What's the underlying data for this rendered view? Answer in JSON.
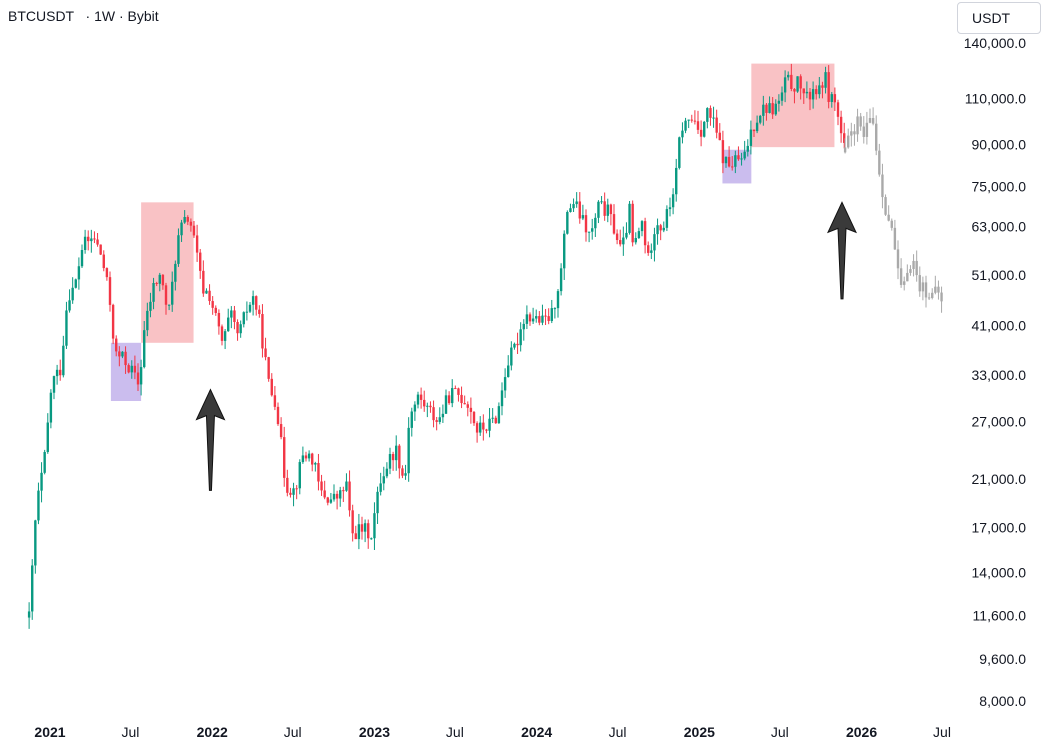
{
  "header": {
    "symbol": "BTCUSDT",
    "interval": "1W",
    "exchange": "Bybit",
    "separator": "·"
  },
  "currency_button": "USDT",
  "chart_data": {
    "type": "candlestick",
    "title": "BTCUSDT · 1W · Bybit",
    "scale": "log",
    "grid": false,
    "colors": {
      "up": "#089981",
      "down": "#f23645",
      "projection": "#a9a9a9",
      "sell_zone": "#f7a8ad",
      "buy_zone": "#b9a7e8",
      "arrow": "#3a3a3a"
    },
    "y_ticks": [
      {
        "value": 140000,
        "label": "140,000.0"
      },
      {
        "value": 110000,
        "label": "110,000.0"
      },
      {
        "value": 90000,
        "label": "90,000.0"
      },
      {
        "value": 75000,
        "label": "75,000.0"
      },
      {
        "value": 63000,
        "label": "63,000.0"
      },
      {
        "value": 51000,
        "label": "51,000.0"
      },
      {
        "value": 41000,
        "label": "41,000.0"
      },
      {
        "value": 33000,
        "label": "33,000.0"
      },
      {
        "value": 27000,
        "label": "27,000.0"
      },
      {
        "value": 21000,
        "label": "21,000.0"
      },
      {
        "value": 17000,
        "label": "17,000.0"
      },
      {
        "value": 14000,
        "label": "14,000.0"
      },
      {
        "value": 11600,
        "label": "11,600.0"
      },
      {
        "value": 9600,
        "label": "9,600.0"
      },
      {
        "value": 8000,
        "label": "8,000.0"
      }
    ],
    "x_ticks": [
      {
        "date": "2021-01-01",
        "label": "2021",
        "bold": true
      },
      {
        "date": "2021-07-01",
        "label": "Jul",
        "bold": false
      },
      {
        "date": "2022-01-01",
        "label": "2022",
        "bold": true
      },
      {
        "date": "2022-07-01",
        "label": "Jul",
        "bold": false
      },
      {
        "date": "2023-01-01",
        "label": "2023",
        "bold": true
      },
      {
        "date": "2023-07-01",
        "label": "Jul",
        "bold": false
      },
      {
        "date": "2024-01-01",
        "label": "2024",
        "bold": true
      },
      {
        "date": "2024-07-01",
        "label": "Jul",
        "bold": false
      },
      {
        "date": "2025-01-01",
        "label": "2025",
        "bold": true
      },
      {
        "date": "2025-07-01",
        "label": "Jul",
        "bold": false
      },
      {
        "date": "2026-01-01",
        "label": "2026",
        "bold": true
      },
      {
        "date": "2026-07-01",
        "label": "Jul",
        "bold": false
      }
    ],
    "series": [
      {
        "name": "BTCUSDT",
        "kind": "weekly closes",
        "points": [
          [
            "2020-11-15",
            11500
          ],
          [
            "2020-12-01",
            18500
          ],
          [
            "2020-12-20",
            23000
          ],
          [
            "2021-01-05",
            32000
          ],
          [
            "2021-01-25",
            34000
          ],
          [
            "2021-02-10",
            47000
          ],
          [
            "2021-02-25",
            48000
          ],
          [
            "2021-03-15",
            58000
          ],
          [
            "2021-04-10",
            60000
          ],
          [
            "2021-04-28",
            55000
          ],
          [
            "2021-05-15",
            46000
          ],
          [
            "2021-05-28",
            36000
          ],
          [
            "2021-06-15",
            35500
          ],
          [
            "2021-07-05",
            33500
          ],
          [
            "2021-07-20",
            31500
          ],
          [
            "2021-08-01",
            40000
          ],
          [
            "2021-08-20",
            48000
          ],
          [
            "2021-09-05",
            51000
          ],
          [
            "2021-09-25",
            43000
          ],
          [
            "2021-10-10",
            55000
          ],
          [
            "2021-10-20",
            62000
          ],
          [
            "2021-11-10",
            66000
          ],
          [
            "2021-11-25",
            57000
          ],
          [
            "2021-12-10",
            48000
          ],
          [
            "2021-12-25",
            47000
          ],
          [
            "2022-01-10",
            42000
          ],
          [
            "2022-01-25",
            37500
          ],
          [
            "2022-02-10",
            43000
          ],
          [
            "2022-03-01",
            39000
          ],
          [
            "2022-03-20",
            44000
          ],
          [
            "2022-04-05",
            46500
          ],
          [
            "2022-04-20",
            40500
          ],
          [
            "2022-05-10",
            31000
          ],
          [
            "2022-05-25",
            29500
          ],
          [
            "2022-06-15",
            20500
          ],
          [
            "2022-07-05",
            20000
          ],
          [
            "2022-07-25",
            23500
          ],
          [
            "2022-08-15",
            23000
          ],
          [
            "2022-09-01",
            19800
          ],
          [
            "2022-09-25",
            19200
          ],
          [
            "2022-10-15",
            19500
          ],
          [
            "2022-10-30",
            20600
          ],
          [
            "2022-11-10",
            16500
          ],
          [
            "2022-12-01",
            16900
          ],
          [
            "2022-12-25",
            16600
          ],
          [
            "2023-01-15",
            21000
          ],
          [
            "2023-02-05",
            23000
          ],
          [
            "2023-02-20",
            24000
          ],
          [
            "2023-03-10",
            20500
          ],
          [
            "2023-03-20",
            27500
          ],
          [
            "2023-04-10",
            30000
          ],
          [
            "2023-05-01",
            28500
          ],
          [
            "2023-05-25",
            27000
          ],
          [
            "2023-06-20",
            30500
          ],
          [
            "2023-07-10",
            30300
          ],
          [
            "2023-08-01",
            29200
          ],
          [
            "2023-08-20",
            26000
          ],
          [
            "2023-09-15",
            26500
          ],
          [
            "2023-10-05",
            27800
          ],
          [
            "2023-10-25",
            34500
          ],
          [
            "2023-11-15",
            37500
          ],
          [
            "2023-12-05",
            43000
          ],
          [
            "2023-12-25",
            42500
          ],
          [
            "2024-01-15",
            41500
          ],
          [
            "2024-02-05",
            43000
          ],
          [
            "2024-02-25",
            52000
          ],
          [
            "2024-03-10",
            68000
          ],
          [
            "2024-03-25",
            70000
          ],
          [
            "2024-04-15",
            64000
          ],
          [
            "2024-05-01",
            60000
          ],
          [
            "2024-05-20",
            69000
          ],
          [
            "2024-06-10",
            67000
          ],
          [
            "2024-06-28",
            61000
          ],
          [
            "2024-07-10",
            56000
          ],
          [
            "2024-07-28",
            67500
          ],
          [
            "2024-08-05",
            57000
          ],
          [
            "2024-08-25",
            64000
          ],
          [
            "2024-09-08",
            54500
          ],
          [
            "2024-09-25",
            65000
          ],
          [
            "2024-10-10",
            62500
          ],
          [
            "2024-10-28",
            69500
          ],
          [
            "2024-11-10",
            79000
          ],
          [
            "2024-11-20",
            97000
          ],
          [
            "2024-12-05",
            99000
          ],
          [
            "2024-12-18",
            101000
          ],
          [
            "2025-01-05",
            96000
          ],
          [
            "2025-01-20",
            104000
          ],
          [
            "2025-02-05",
            97000
          ],
          [
            "2025-02-25",
            84000
          ],
          [
            "2025-03-10",
            82000
          ],
          [
            "2025-03-28",
            84500
          ],
          [
            "2025-04-10",
            83000
          ],
          [
            "2025-04-25",
            94500
          ],
          [
            "2025-05-15",
            103500
          ],
          [
            "2025-05-30",
            106000
          ],
          [
            "2025-06-15",
            105000
          ],
          [
            "2025-06-30",
            108000
          ],
          [
            "2025-07-15",
            119000
          ],
          [
            "2025-07-30",
            116500
          ],
          [
            "2025-08-15",
            117500
          ],
          [
            "2025-08-30",
            109000
          ],
          [
            "2025-09-15",
            115500
          ],
          [
            "2025-10-01",
            112000
          ],
          [
            "2025-10-08",
            124000
          ],
          [
            "2025-10-20",
            111000
          ],
          [
            "2025-11-01",
            110000
          ],
          [
            "2025-11-15",
            95000
          ],
          [
            "2025-11-25",
            87000
          ]
        ]
      },
      {
        "name": "projection",
        "kind": "copied path",
        "points": [
          [
            "2025-11-25",
            87000
          ],
          [
            "2025-12-10",
            96000
          ],
          [
            "2025-12-25",
            99000
          ],
          [
            "2026-01-08",
            92000
          ],
          [
            "2026-01-20",
            101000
          ],
          [
            "2026-01-30",
            98000
          ],
          [
            "2026-02-05",
            85000
          ],
          [
            "2026-02-15",
            75000
          ],
          [
            "2026-02-25",
            68000
          ],
          [
            "2026-03-05",
            64000
          ],
          [
            "2026-03-15",
            59000
          ],
          [
            "2026-03-25",
            50000
          ],
          [
            "2026-04-05",
            47000
          ],
          [
            "2026-04-15",
            53000
          ],
          [
            "2026-04-25",
            55000
          ],
          [
            "2026-05-10",
            49000
          ],
          [
            "2026-05-25",
            48000
          ],
          [
            "2026-06-10",
            46500
          ],
          [
            "2026-06-25",
            47500
          ],
          [
            "2026-07-03",
            44000
          ]
        ]
      }
    ],
    "annotations": [
      {
        "type": "box",
        "color": "buy_zone",
        "start": "2021-05-18",
        "end": "2021-07-25",
        "top": 38000,
        "bottom": 29500
      },
      {
        "type": "box",
        "color": "sell_zone",
        "start": "2021-07-25",
        "end": "2021-11-20",
        "top": 70000,
        "bottom": 38000
      },
      {
        "type": "arrow",
        "date": "2021-12-28",
        "from": 20000,
        "to": 31000
      },
      {
        "type": "box",
        "color": "buy_zone",
        "start": "2025-02-22",
        "end": "2025-04-28",
        "top": 88000,
        "bottom": 76000
      },
      {
        "type": "box",
        "color": "sell_zone",
        "start": "2025-04-28",
        "end": "2025-11-01",
        "top": 128000,
        "bottom": 89000
      },
      {
        "type": "arrow",
        "date": "2025-11-18",
        "from": 46000,
        "to": 70000
      }
    ]
  }
}
